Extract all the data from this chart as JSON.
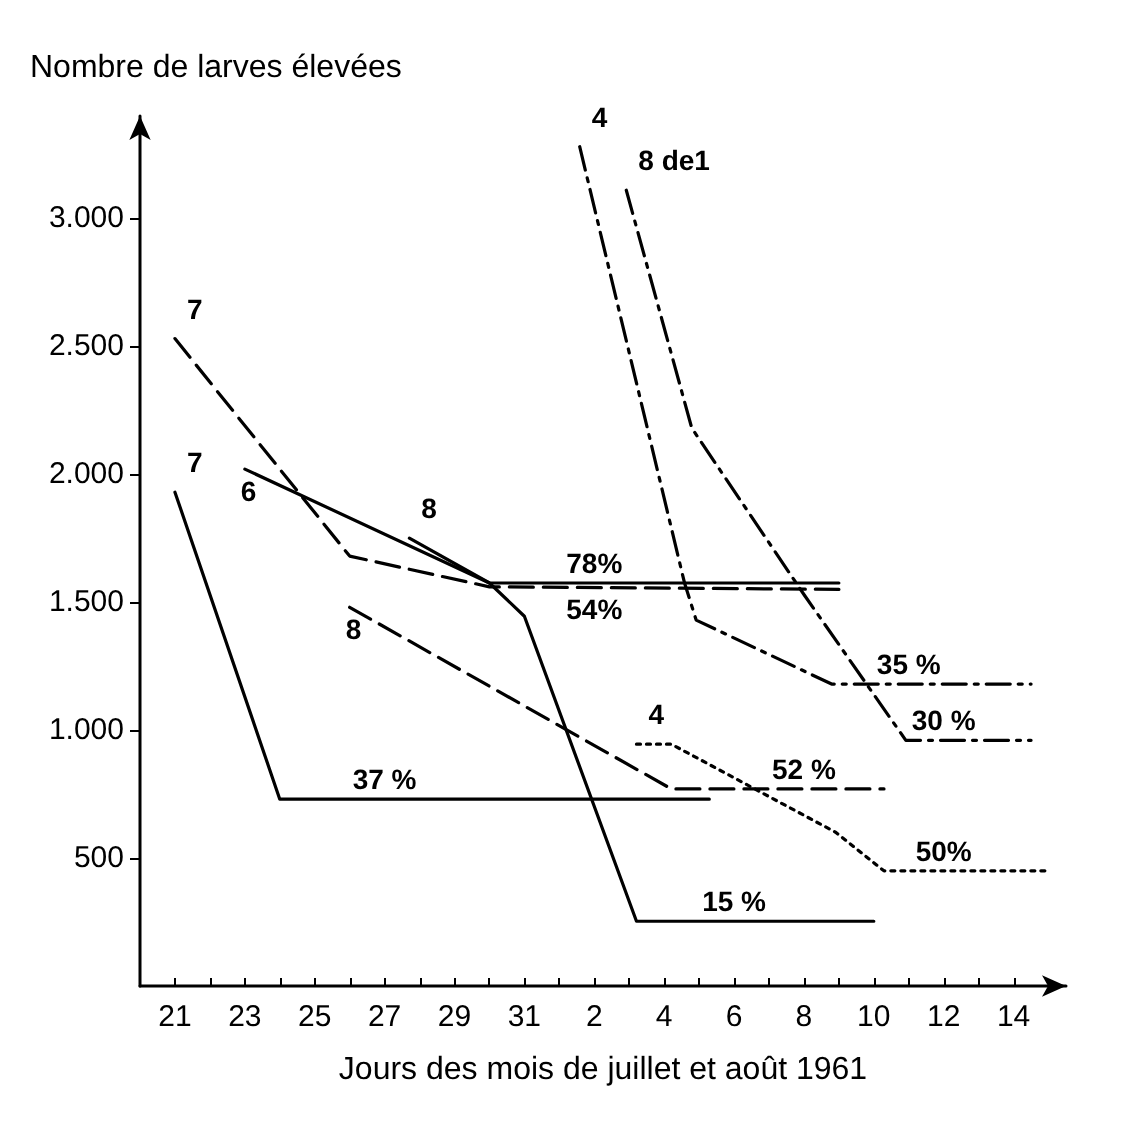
{
  "chart_data": {
    "type": "line",
    "ylabel": "Nombre de larves élevées",
    "xlabel": "Jours des mois de juillet et août 1961",
    "xlim": [
      "1961-07-20",
      "1961-08-15T12:00"
    ],
    "ylim": [
      0,
      3400
    ],
    "xticks": [
      {
        "value": "1961-07-21",
        "label": "21"
      },
      {
        "value": "1961-07-22",
        "label": null
      },
      {
        "value": "1961-07-23",
        "label": "23"
      },
      {
        "value": "1961-07-24",
        "label": null
      },
      {
        "value": "1961-07-25",
        "label": "25"
      },
      {
        "value": "1961-07-26",
        "label": null
      },
      {
        "value": "1961-07-27",
        "label": "27"
      },
      {
        "value": "1961-07-28",
        "label": null
      },
      {
        "value": "1961-07-29",
        "label": "29"
      },
      {
        "value": "1961-07-30",
        "label": null
      },
      {
        "value": "1961-07-31",
        "label": "31"
      },
      {
        "value": "1961-08-01",
        "label": null
      },
      {
        "value": "1961-08-02",
        "label": "2"
      },
      {
        "value": "1961-08-03",
        "label": null
      },
      {
        "value": "1961-08-04",
        "label": "4"
      },
      {
        "value": "1961-08-05",
        "label": null
      },
      {
        "value": "1961-08-06",
        "label": "6"
      },
      {
        "value": "1961-08-07",
        "label": null
      },
      {
        "value": "1961-08-08",
        "label": "8"
      },
      {
        "value": "1961-08-09",
        "label": null
      },
      {
        "value": "1961-08-10",
        "label": "10"
      },
      {
        "value": "1961-08-11",
        "label": null
      },
      {
        "value": "1961-08-12",
        "label": "12"
      },
      {
        "value": "1961-08-13",
        "label": null
      },
      {
        "value": "1961-08-14",
        "label": "14"
      }
    ],
    "yticks": [
      500,
      {
        "value": 1000,
        "label": "1.000"
      },
      {
        "value": 1500,
        "label": "1.500"
      },
      {
        "value": 2000,
        "label": "2.000"
      },
      {
        "value": 2500,
        "label": "2.500"
      },
      {
        "value": 3000,
        "label": "3.000"
      }
    ],
    "grid": false,
    "marker": "none",
    "series": [
      {
        "name": "7",
        "color": "#000000",
        "line_style": "solid",
        "x": [
          "1961-07-21",
          "1961-07-24",
          "1961-08-05T07:00"
        ],
        "values": [
          1930,
          730,
          730
        ]
      },
      {
        "name": "7",
        "color": "#000000",
        "line_style": "dashed",
        "x": [
          "1961-07-21",
          "1961-07-26",
          "1961-07-30",
          "1961-08-09"
        ],
        "values": [
          2530,
          1680,
          1560,
          1550
        ]
      },
      {
        "name": "6",
        "color": "#000000",
        "line_style": "solid",
        "x": [
          "1961-07-23",
          "1961-07-30",
          "1961-07-31",
          "1961-08-03T05:00",
          "1961-08-10"
        ],
        "values": [
          2020,
          1575,
          1445,
          253,
          253
        ]
      },
      {
        "name": "8",
        "color": "#000000",
        "line_style": "solid",
        "x": [
          "1961-07-27T17:00",
          "1961-07-30",
          "1961-08-09"
        ],
        "values": [
          1750,
          1575,
          1575
        ]
      },
      {
        "name": "8",
        "color": "#000000",
        "line_style": "dashed",
        "x": [
          "1961-07-26",
          "1961-08-04T05:00",
          "1961-08-10T07:00"
        ],
        "values": [
          1480,
          770,
          770
        ]
      },
      {
        "name": "4",
        "color": "#000000",
        "line_style": "dashdot",
        "x": [
          "1961-08-01T14:00",
          "1961-08-04T14:00",
          "1961-08-04T22:00",
          "1961-08-08T19:00",
          "1961-08-14T12:00"
        ],
        "values": [
          3280,
          1575,
          1430,
          1180,
          1180
        ]
      },
      {
        "name": "8 de1",
        "color": "#000000",
        "line_style": "dashdot",
        "x": [
          "1961-08-02T22:00",
          "1961-08-04T19:00",
          "1961-08-08",
          "1961-08-10T22:00",
          "1961-08-14T12:00"
        ],
        "values": [
          3110,
          2180,
          1530,
          960,
          960
        ]
      },
      {
        "name": "4",
        "color": "#000000",
        "line_style": "dotted",
        "x": [
          "1961-08-03T05:00",
          "1961-08-04T05:00",
          "1961-08-08T22:00",
          "1961-08-10T07:00",
          "1961-08-14T22:00"
        ],
        "values": [
          945,
          945,
          600,
          450,
          450
        ]
      }
    ],
    "annotations": [
      {
        "text": "78%",
        "x": "1961-08-02",
        "y": 1575
      },
      {
        "text": "54%",
        "x": "1961-08-02",
        "y": 1550
      },
      {
        "text": "37 %",
        "x": "1961-07-27",
        "y": 730
      },
      {
        "text": "52 %",
        "x": "1961-08-08",
        "y": 770
      },
      {
        "text": "15 %",
        "x": "1961-08-06",
        "y": 253
      },
      {
        "text": "35 %",
        "x": "1961-08-11",
        "y": 1180
      },
      {
        "text": "30 %",
        "x": "1961-08-12",
        "y": 960
      },
      {
        "text": "50%",
        "x": "1961-08-12",
        "y": 450
      }
    ]
  }
}
